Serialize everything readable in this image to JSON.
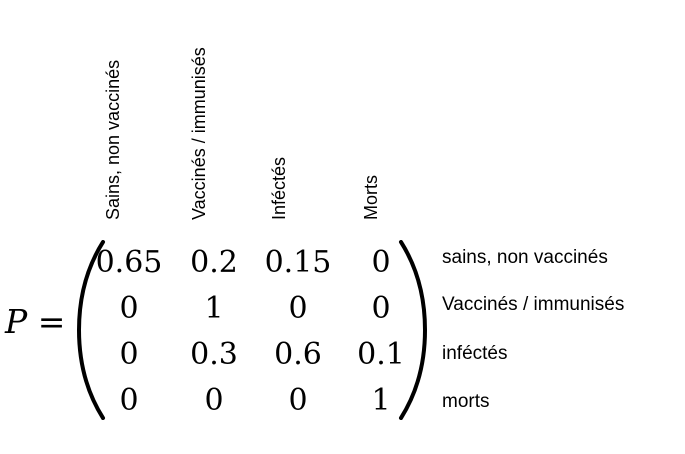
{
  "equation": {
    "variable": "P",
    "equals": "="
  },
  "column_headers": [
    "Sains, non vaccinés",
    "Vaccinés / immunisés",
    "Inféctés",
    "Morts"
  ],
  "row_labels": [
    "sains, non vaccinés",
    "Vaccinés / immunisés",
    "inféctés",
    "morts"
  ],
  "matrix": [
    [
      "0.65",
      "0.2",
      "0.15",
      "0"
    ],
    [
      "0",
      "1",
      "0",
      "0"
    ],
    [
      "0",
      "0.3",
      "0.6",
      "0.1"
    ],
    [
      "0",
      "0",
      "0",
      "1"
    ]
  ]
}
